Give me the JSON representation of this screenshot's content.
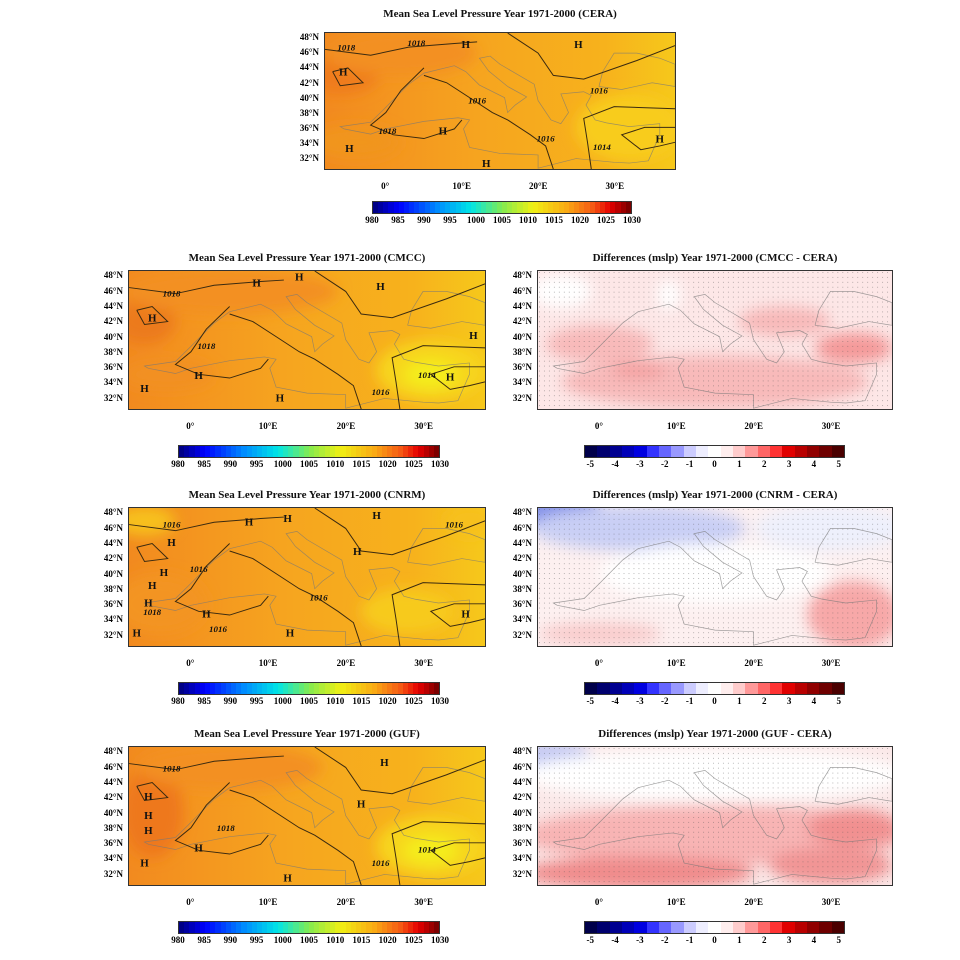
{
  "lat_labels": [
    "48°N",
    "46°N",
    "44°N",
    "42°N",
    "40°N",
    "38°N",
    "36°N",
    "34°N",
    "32°N"
  ],
  "lon_labels": [
    "0°",
    "10°E",
    "20°E",
    "30°E"
  ],
  "mslp_colorbar": {
    "labels": [
      "980",
      "985",
      "990",
      "995",
      "1000",
      "1005",
      "1010",
      "1015",
      "1020",
      "1025",
      "1030"
    ],
    "range": [
      980,
      1030
    ]
  },
  "diff_colorbar": {
    "labels": [
      "-5",
      "-4",
      "-3",
      "-2",
      "-1",
      "0",
      "1",
      "2",
      "3",
      "4",
      "5"
    ],
    "colors": [
      "#00004a",
      "#00006e",
      "#000090",
      "#0000b8",
      "#0000e0",
      "#3333ff",
      "#6666ff",
      "#9999ff",
      "#ccccff",
      "#eeeeff",
      "#ffffff",
      "#ffeeee",
      "#ffcccc",
      "#ff9999",
      "#ff6666",
      "#ff3333",
      "#e00000",
      "#b80000",
      "#900000",
      "#6e0000",
      "#4a0000"
    ]
  },
  "panels": [
    {
      "id": "cera",
      "type": "mslp",
      "title": "Mean Sea Level Pressure Year 1971-2000 (CERA)",
      "highs": [
        {
          "text": "H",
          "lon": 10.5,
          "lat": 47
        },
        {
          "text": "H",
          "lon": 25.3,
          "lat": 47
        },
        {
          "text": "H",
          "lon": -5.6,
          "lat": 43.3
        },
        {
          "text": "H",
          "lon": -4.8,
          "lat": 33
        },
        {
          "text": "H",
          "lon": 7.5,
          "lat": 35.4
        },
        {
          "text": "H",
          "lon": 13.2,
          "lat": 31
        },
        {
          "text": "H",
          "lon": 36,
          "lat": 34.3
        }
      ],
      "contour_labels": [
        {
          "text": "1018",
          "lon": -5.2,
          "lat": 46.6
        },
        {
          "text": "1018",
          "lon": 4,
          "lat": 47.2
        },
        {
          "text": "1016",
          "lon": 12,
          "lat": 39.5
        },
        {
          "text": "1018",
          "lon": 0.2,
          "lat": 35.4
        },
        {
          "text": "1016",
          "lon": 21,
          "lat": 34.4
        },
        {
          "text": "1014",
          "lon": 28.4,
          "lat": 33.2
        },
        {
          "text": "1016",
          "lon": 28,
          "lat": 40.8
        }
      ]
    },
    {
      "id": "cmcc",
      "type": "mslp",
      "title": "Mean Sea Level Pressure Year 1971-2000 (CMCC)",
      "highs": [
        {
          "text": "H",
          "lon": 8.5,
          "lat": 47
        },
        {
          "text": "H",
          "lon": 14,
          "lat": 47.8
        },
        {
          "text": "H",
          "lon": 24.5,
          "lat": 46.5
        },
        {
          "text": "H",
          "lon": -5,
          "lat": 42.3
        },
        {
          "text": "H",
          "lon": 36.5,
          "lat": 40
        },
        {
          "text": "H",
          "lon": 1,
          "lat": 34.7
        },
        {
          "text": "H",
          "lon": -6,
          "lat": 33
        },
        {
          "text": "H",
          "lon": 11.5,
          "lat": 31.7
        },
        {
          "text": "H",
          "lon": 33.5,
          "lat": 34.5
        }
      ],
      "contour_labels": [
        {
          "text": "1018",
          "lon": -2.5,
          "lat": 45.6
        },
        {
          "text": "1018",
          "lon": 2,
          "lat": 38.6
        },
        {
          "text": "1014",
          "lon": 30.5,
          "lat": 34.8
        },
        {
          "text": "1016",
          "lon": 24.5,
          "lat": 32.5
        }
      ]
    },
    {
      "id": "diff-cmcc",
      "type": "diff",
      "title": "Differences (mslp) Year 1971-2000 (CMCC - CERA)"
    },
    {
      "id": "cnrm",
      "type": "mslp",
      "title": "Mean Sea Level Pressure Year 1971-2000 (CNRM)",
      "highs": [
        {
          "text": "H",
          "lon": 7.5,
          "lat": 46.7
        },
        {
          "text": "H",
          "lon": 12.5,
          "lat": 47.2
        },
        {
          "text": "H",
          "lon": 24,
          "lat": 47.6
        },
        {
          "text": "H",
          "lon": -2.5,
          "lat": 44
        },
        {
          "text": "H",
          "lon": 21.5,
          "lat": 42.8
        },
        {
          "text": "H",
          "lon": -3.5,
          "lat": 40
        },
        {
          "text": "H",
          "lon": -5,
          "lat": 38.3
        },
        {
          "text": "H",
          "lon": -5.5,
          "lat": 36
        },
        {
          "text": "H",
          "lon": 2,
          "lat": 34.5
        },
        {
          "text": "H",
          "lon": -7,
          "lat": 32
        },
        {
          "text": "H",
          "lon": 12.8,
          "lat": 32
        },
        {
          "text": "H",
          "lon": 35.5,
          "lat": 34.5
        }
      ],
      "contour_labels": [
        {
          "text": "1016",
          "lon": -2.5,
          "lat": 46.4
        },
        {
          "text": "1016",
          "lon": 34,
          "lat": 46.4
        },
        {
          "text": "1016",
          "lon": 1,
          "lat": 40.5
        },
        {
          "text": "1018",
          "lon": -5,
          "lat": 34.8
        },
        {
          "text": "1016",
          "lon": 16.5,
          "lat": 36.7
        },
        {
          "text": "1016",
          "lon": 3.5,
          "lat": 32.5
        }
      ]
    },
    {
      "id": "diff-cnrm",
      "type": "diff",
      "title": "Differences (mslp) Year 1971-2000 (CNRM - CERA)"
    },
    {
      "id": "guf",
      "type": "mslp",
      "title": "Mean Sea Level Pressure Year 1971-2000 (GUF)",
      "highs": [
        {
          "text": "H",
          "lon": 25,
          "lat": 46.5
        },
        {
          "text": "H",
          "lon": -5.5,
          "lat": 42
        },
        {
          "text": "H",
          "lon": 22,
          "lat": 41
        },
        {
          "text": "H",
          "lon": -5.5,
          "lat": 39.5
        },
        {
          "text": "H",
          "lon": -5.5,
          "lat": 37.5
        },
        {
          "text": "H",
          "lon": 1,
          "lat": 35.2
        },
        {
          "text": "H",
          "lon": -6,
          "lat": 33.2
        },
        {
          "text": "H",
          "lon": 12.5,
          "lat": 31.2
        }
      ],
      "contour_labels": [
        {
          "text": "1018",
          "lon": -2.5,
          "lat": 45.7
        },
        {
          "text": "1018",
          "lon": 4.5,
          "lat": 37.8
        },
        {
          "text": "1014",
          "lon": 30.5,
          "lat": 35
        },
        {
          "text": "1016",
          "lon": 24.5,
          "lat": 33.2
        }
      ]
    },
    {
      "id": "diff-guf",
      "type": "diff",
      "title": "Differences (mslp) Year 1971-2000 (GUF - CERA)"
    }
  ]
}
